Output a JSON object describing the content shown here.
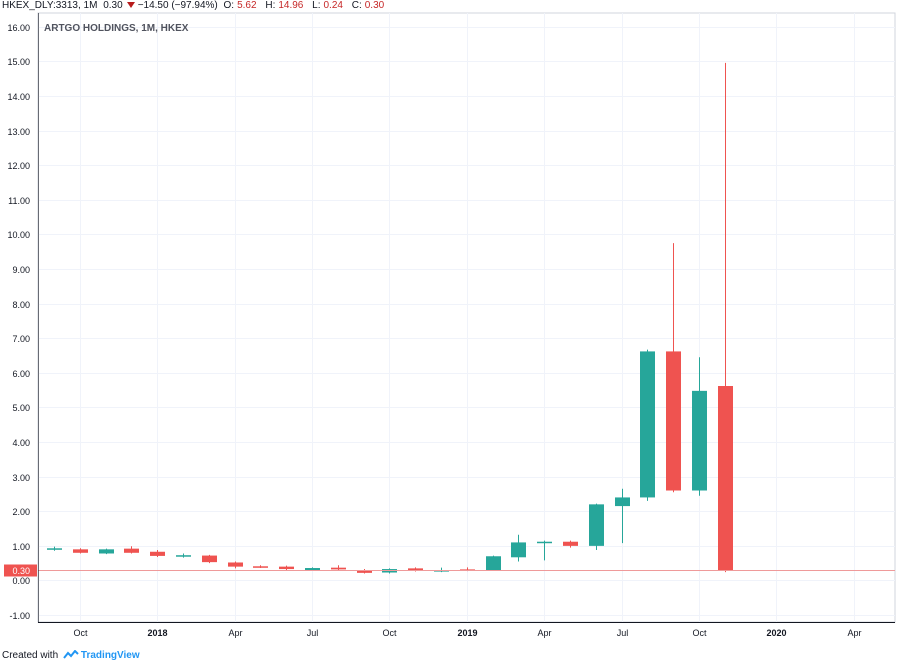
{
  "header": {
    "symbol": "HKEX_DLY:3313, 1M",
    "last": "0.30",
    "change": "−14.50 (−97.94%)",
    "o_label": "O:",
    "o_value": "5.62",
    "h_label": "H:",
    "h_value": "14.96",
    "l_label": "L:",
    "l_value": "0.24",
    "c_label": "C:",
    "c_value": "0.30"
  },
  "chart_title": "ARTGO HOLDINGS, 1M, HKEX",
  "footer": {
    "created_with": "Created with",
    "brand": "TradingView"
  },
  "colors": {
    "up": "#26a69a",
    "down": "#ef5350",
    "grid": "#f0f3fa",
    "last_price_line": "#ef9a9a",
    "last_price_bg": "#ef5350"
  },
  "chart_data": {
    "type": "candlestick",
    "ylim": [
      -1.2,
      16.4
    ],
    "y_ticks": [
      "-1.00",
      "0.00",
      "1.00",
      "2.00",
      "3.00",
      "4.00",
      "5.00",
      "6.00",
      "7.00",
      "8.00",
      "9.00",
      "10.00",
      "11.00",
      "12.00",
      "13.00",
      "14.00",
      "15.00",
      "16.00"
    ],
    "x_ticks": [
      {
        "label": "Oct",
        "index": 1
      },
      {
        "label": "2018",
        "index": 4
      },
      {
        "label": "Apr",
        "index": 7
      },
      {
        "label": "Jul",
        "index": 10
      },
      {
        "label": "Oct",
        "index": 13
      },
      {
        "label": "2019",
        "index": 16
      },
      {
        "label": "Apr",
        "index": 19
      },
      {
        "label": "Jul",
        "index": 22
      },
      {
        "label": "Oct",
        "index": 25
      },
      {
        "label": "2020",
        "index": 28
      },
      {
        "label": "Apr",
        "index": 31
      }
    ],
    "last_price": "0.30",
    "candles": [
      {
        "o": 0.9,
        "h": 0.98,
        "l": 0.86,
        "c": 0.93
      },
      {
        "o": 0.9,
        "h": 0.93,
        "l": 0.78,
        "c": 0.8
      },
      {
        "o": 0.78,
        "h": 0.92,
        "l": 0.76,
        "c": 0.9
      },
      {
        "o": 0.92,
        "h": 0.99,
        "l": 0.78,
        "c": 0.8
      },
      {
        "o": 0.83,
        "h": 0.88,
        "l": 0.68,
        "c": 0.71
      },
      {
        "o": 0.71,
        "h": 0.78,
        "l": 0.66,
        "c": 0.73
      },
      {
        "o": 0.72,
        "h": 0.74,
        "l": 0.5,
        "c": 0.53
      },
      {
        "o": 0.52,
        "h": 0.55,
        "l": 0.35,
        "c": 0.4
      },
      {
        "o": 0.41,
        "h": 0.44,
        "l": 0.36,
        "c": 0.38
      },
      {
        "o": 0.4,
        "h": 0.43,
        "l": 0.3,
        "c": 0.33
      },
      {
        "o": 0.3,
        "h": 0.38,
        "l": 0.28,
        "c": 0.36
      },
      {
        "o": 0.37,
        "h": 0.44,
        "l": 0.3,
        "c": 0.32
      },
      {
        "o": 0.3,
        "h": 0.33,
        "l": 0.2,
        "c": 0.22
      },
      {
        "o": 0.23,
        "h": 0.35,
        "l": 0.2,
        "c": 0.33
      },
      {
        "o": 0.35,
        "h": 0.38,
        "l": 0.26,
        "c": 0.29
      },
      {
        "o": 0.26,
        "h": 0.37,
        "l": 0.24,
        "c": 0.3
      },
      {
        "o": 0.32,
        "h": 0.38,
        "l": 0.27,
        "c": 0.3
      },
      {
        "o": 0.3,
        "h": 0.72,
        "l": 0.28,
        "c": 0.7
      },
      {
        "o": 0.67,
        "h": 1.32,
        "l": 0.55,
        "c": 1.1
      },
      {
        "o": 1.1,
        "h": 1.15,
        "l": 0.58,
        "c": 1.12
      },
      {
        "o": 1.12,
        "h": 1.15,
        "l": 0.95,
        "c": 1.0
      },
      {
        "o": 1.0,
        "h": 2.22,
        "l": 0.88,
        "c": 2.2
      },
      {
        "o": 2.15,
        "h": 2.65,
        "l": 1.08,
        "c": 2.4
      },
      {
        "o": 2.4,
        "h": 6.67,
        "l": 2.3,
        "c": 6.62
      },
      {
        "o": 6.62,
        "h": 9.75,
        "l": 2.55,
        "c": 2.6
      },
      {
        "o": 2.6,
        "h": 6.45,
        "l": 2.45,
        "c": 5.48
      },
      {
        "o": 5.62,
        "h": 14.96,
        "l": 0.24,
        "c": 0.3
      }
    ]
  }
}
